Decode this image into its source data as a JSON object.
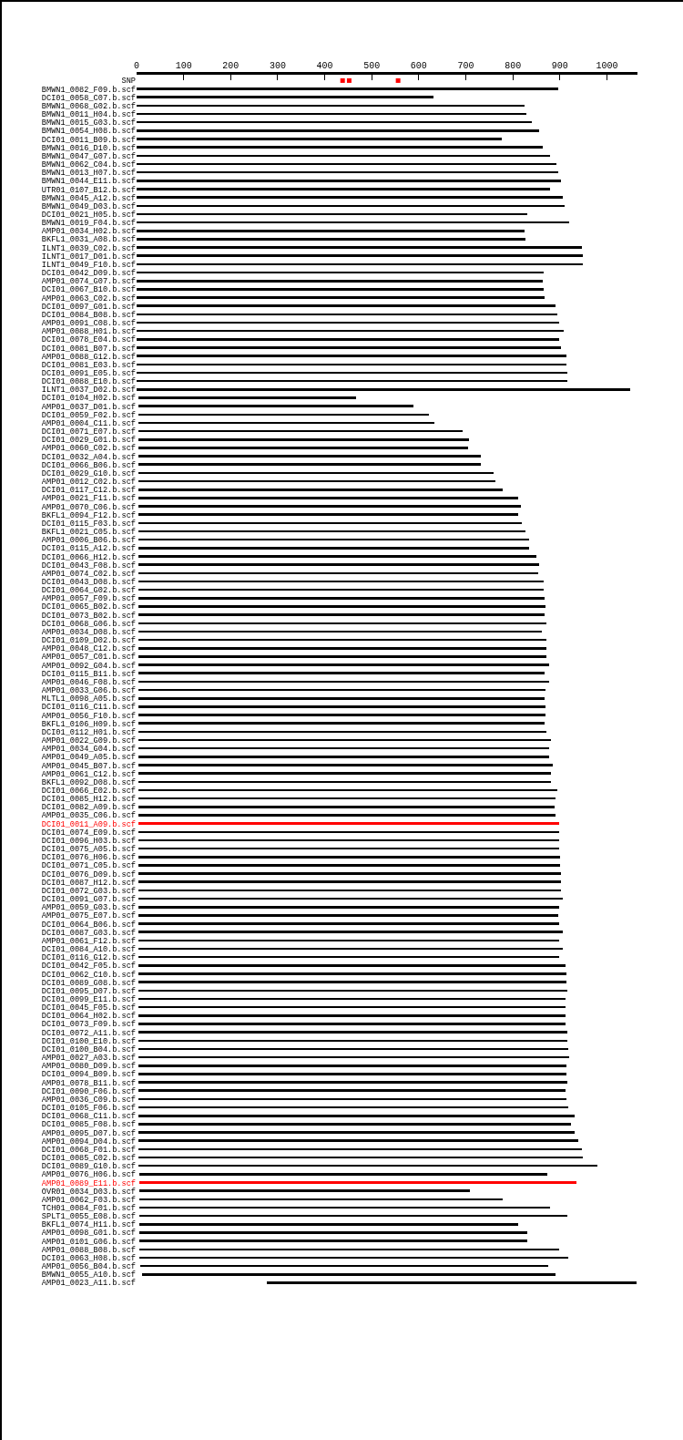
{
  "chart_data": {
    "type": "bar",
    "orientation": "horizontal",
    "xlim": [
      0,
      1065
    ],
    "xticks": [
      0,
      100,
      200,
      300,
      400,
      500,
      600,
      700,
      800,
      900,
      1000
    ],
    "grid": false,
    "categories": [
      "SNP",
      "BMWN1_0082_F09.b.scf",
      "DCI01_0058_C07.b.scf",
      "BMWN1_0068_G02.b.scf",
      "BMWN1_0011_H04.b.scf",
      "BMWN1_0015_G03.b.scf",
      "BMWN1_0054_H08.b.scf",
      "DCI01_0011_B09.b.scf",
      "BMWN1_0016_D10.b.scf",
      "BMWN1_0047_G07.b.scf",
      "BMWN1_0062_C04.b.scf",
      "BMWN1_0013_H07.b.scf",
      "BMWN1_0044_E11.b.scf",
      "UTR01_0107_B12.b.scf",
      "BMWN1_0045_A12.b.scf",
      "BMWN1_0049_D03.b.scf",
      "DCI01_0021_H05.b.scf",
      "BMWN1_0019_F04.b.scf",
      "AMP01_0034_H02.b.scf",
      "BKFL1_0031_A08.b.scf",
      "ILNT1_0039_C02.b.scf",
      "ILNT1_0017_D01.b.scf",
      "ILNT1_0049_F10.b.scf",
      "DCI01_0042_D09.b.scf",
      "AMP01_0074_G07.b.scf",
      "DCI01_0067_B10.b.scf",
      "AMP01_0063_C02.b.scf",
      "DCI01_0097_G01.b.scf",
      "DCI01_0084_B08.b.scf",
      "AMP01_0091_C08.b.scf",
      "AMP01_0088_H01.b.scf",
      "DCI01_0078_E04.b.scf",
      "DCI01_0081_B07.b.scf",
      "AMP01_0088_G12.b.scf",
      "DCI01_0081_E03.b.scf",
      "DCI01_0091_E05.b.scf",
      "DCI01_0088_E10.b.scf",
      "ILNT1_0037_D02.b.scf",
      "DCI01_0104_H02.b.scf",
      "AMP01_0037_D01.b.scf",
      "DCI01_0059_F02.b.scf",
      "AMP01_0004_C11.b.scf",
      "DCI01_0071_E07.b.scf",
      "DCI01_0029_G01.b.scf",
      "AMP01_0060_C02.b.scf",
      "DCI01_0032_A04.b.scf",
      "DCI01_0066_B06.b.scf",
      "DCI01_0029_G10.b.scf",
      "AMP01_0012_C02.b.scf",
      "DCI01_0117_C12.b.scf",
      "AMP01_0021_F11.b.scf",
      "AMP01_0070_C06.b.scf",
      "BKFL1_0094_F12.b.scf",
      "DCI01_0115_F03.b.scf",
      "BKFL1_0021_C05.b.scf",
      "AMP01_0006_B06.b.scf",
      "DCI01_0115_A12.b.scf",
      "DCI01_0066_H12.b.scf",
      "DCI01_0043_F08.b.scf",
      "AMP01_0074_C02.b.scf",
      "DCI01_0043_D08.b.scf",
      "DCI01_0064_G02.b.scf",
      "AMP01_0057_F09.b.scf",
      "DCI01_0065_B02.b.scf",
      "DCI01_0073_B02.b.scf",
      "DCI01_0068_G06.b.scf",
      "AMP01_0034_D08.b.scf",
      "DCI01_0109_D02.b.scf",
      "AMP01_0048_C12.b.scf",
      "AMP01_0057_C01.b.scf",
      "AMP01_0092_G04.b.scf",
      "DCI01_0115_B11.b.scf",
      "AMP01_0046_F08.b.scf",
      "AMP01_0033_G06.b.scf",
      "MLTL1_0098_A05.b.scf",
      "DCI01_0116_C11.b.scf",
      "AMP01_0056_F10.b.scf",
      "BKFL1_0106_H09.b.scf",
      "DCI01_0112_H01.b.scf",
      "AMP01_0022_G09.b.scf",
      "AMP01_0034_G04.b.scf",
      "AMP01_0049_A05.b.scf",
      "AMP01_0045_B07.b.scf",
      "AMP01_0061_C12.b.scf",
      "BKFL1_0092_D08.b.scf",
      "DCI01_0066_E02.b.scf",
      "DCI01_0085_H12.b.scf",
      "DCI01_0082_A09.b.scf",
      "AMP01_0035_C06.b.scf",
      "DCI01_0011_A09.b.scf",
      "DCI01_0074_E09.b.scf",
      "DCI01_0096_H03.b.scf",
      "DCI01_0075_A05.b.scf",
      "DCI01_0076_H06.b.scf",
      "DCI01_0071_C05.b.scf",
      "DCI01_0076_D09.b.scf",
      "DCI01_0087_H12.b.scf",
      "DCI01_0072_G03.b.scf",
      "DCI01_0091_G07.b.scf",
      "AMP01_0059_G03.b.scf",
      "AMP01_0075_E07.b.scf",
      "DCI01_0064_B06.b.scf",
      "DCI01_0087_G03.b.scf",
      "AMP01_0061_F12.b.scf",
      "DCI01_0084_A10.b.scf",
      "DCI01_0116_G12.b.scf",
      "DCI01_0042_F05.b.scf",
      "DCI01_0062_C10.b.scf",
      "DCI01_0089_G08.b.scf",
      "DCI01_0095_D07.b.scf",
      "DCI01_0099_E11.b.scf",
      "DCI01_0045_F05.b.scf",
      "DCI01_0064_H02.b.scf",
      "DCI01_0073_F09.b.scf",
      "DCI01_0072_A11.b.scf",
      "DCI01_0100_E10.b.scf",
      "DCI01_0100_B04.b.scf",
      "AMP01_0027_A03.b.scf",
      "AMP01_0080_D09.b.scf",
      "DCI01_0094_B09.b.scf",
      "AMP01_0078_B11.b.scf",
      "DCI01_0090_F06.b.scf",
      "AMP01_0036_C09.b.scf",
      "DCI01_0105_F06.b.scf",
      "DCI01_0068_C11.b.scf",
      "DCI01_0085_F08.b.scf",
      "AMP01_0095_D07.b.scf",
      "AMP01_0094_D04.b.scf",
      "DCI01_0068_F01.b.scf",
      "DCI01_0085_C02.b.scf",
      "DCI01_0089_G10.b.scf",
      "AMP01_0076_H06.b.scf",
      "AMP01_0089_E11.b.scf",
      "OVR01_0034_D03.b.scf",
      "AMP01_0062_F03.b.scf",
      "TCH01_0084_F01.b.scf",
      "SPLT1_0055_E08.b.scf",
      "BKFL1_0074_H11.b.scf",
      "AMP01_0098_G01.b.scf",
      "AMP01_0101_G06.b.scf",
      "AMP01_0088_B08.b.scf",
      "DCI01_0063_H08.b.scf",
      "AMP01_0056_B04.b.scf",
      "BMWN1_0055_A10.b.scf",
      "AMP01_0023_A11.b.scf"
    ],
    "series": [
      {
        "values": [
          null,
          896,
          631,
          825,
          829,
          840,
          855,
          776,
          863,
          880,
          892,
          896,
          903,
          880,
          907,
          911,
          830,
          919,
          825,
          827,
          947,
          949,
          949,
          866,
          863,
          866,
          868,
          891,
          895,
          899,
          909,
          899,
          903,
          914,
          914,
          916,
          916,
          1049,
          463,
          586,
          619,
          630,
          690,
          703,
          701,
          728,
          728,
          756,
          759,
          775,
          809,
          815,
          808,
          817,
          823,
          832,
          831,
          848,
          853,
          850,
          862,
          863,
          865,
          867,
          865,
          869,
          859,
          869,
          869,
          869,
          874,
          865,
          874,
          867,
          865,
          867,
          867,
          865,
          869,
          878,
          874,
          874,
          882,
          878,
          878,
          892,
          887,
          885,
          888,
          896,
          896,
          896,
          896,
          897,
          897,
          899,
          899,
          899,
          903,
          896,
          894,
          896,
          903,
          896,
          903,
          896,
          909,
          911,
          911,
          913,
          909,
          909,
          909,
          909,
          913,
          913,
          915,
          917,
          911,
          911,
          913,
          909,
          911,
          915,
          929,
          921,
          929,
          936,
          944,
          946,
          977,
          868,
          930,
          703,
          773,
          874,
          911,
          806,
          825,
          825,
          893,
          912,
          868,
          879,
          787
        ],
        "base": [
          null,
          0,
          0,
          0,
          0,
          0,
          0,
          0,
          0,
          0,
          0,
          0,
          0,
          0,
          0,
          0,
          0,
          0,
          0,
          0,
          0,
          0,
          0,
          0,
          0,
          0,
          0,
          0,
          0,
          0,
          0,
          0,
          0,
          0,
          0,
          0,
          0,
          0,
          3,
          3,
          3,
          3,
          3,
          3,
          3,
          3,
          3,
          3,
          3,
          3,
          3,
          3,
          3,
          3,
          3,
          3,
          3,
          3,
          3,
          3,
          3,
          3,
          3,
          3,
          3,
          3,
          3,
          3,
          3,
          3,
          3,
          3,
          3,
          3,
          3,
          3,
          3,
          3,
          3,
          3,
          3,
          3,
          3,
          3,
          3,
          3,
          3,
          3,
          3,
          3,
          3,
          3,
          3,
          3,
          3,
          3,
          3,
          3,
          3,
          3,
          3,
          3,
          3,
          3,
          3,
          3,
          3,
          3,
          3,
          3,
          3,
          3,
          3,
          3,
          3,
          3,
          3,
          3,
          3,
          3,
          3,
          3,
          3,
          3,
          3,
          3,
          3,
          3,
          3,
          3,
          3,
          5,
          5,
          5,
          5,
          5,
          5,
          6,
          6,
          6,
          6,
          6,
          8,
          12,
          276
        ],
        "colors": [
          "#000000",
          "#000000",
          "#000000",
          "#000000",
          "#000000",
          "#000000",
          "#000000",
          "#000000",
          "#000000",
          "#000000",
          "#000000",
          "#000000",
          "#000000",
          "#000000",
          "#000000",
          "#000000",
          "#000000",
          "#000000",
          "#000000",
          "#000000",
          "#000000",
          "#000000",
          "#000000",
          "#000000",
          "#000000",
          "#000000",
          "#000000",
          "#000000",
          "#000000",
          "#000000",
          "#000000",
          "#000000",
          "#000000",
          "#000000",
          "#000000",
          "#000000",
          "#000000",
          "#000000",
          "#000000",
          "#000000",
          "#000000",
          "#000000",
          "#000000",
          "#000000",
          "#000000",
          "#000000",
          "#000000",
          "#000000",
          "#000000",
          "#000000",
          "#000000",
          "#000000",
          "#000000",
          "#000000",
          "#000000",
          "#000000",
          "#000000",
          "#000000",
          "#000000",
          "#000000",
          "#000000",
          "#000000",
          "#000000",
          "#000000",
          "#000000",
          "#000000",
          "#000000",
          "#000000",
          "#000000",
          "#000000",
          "#000000",
          "#000000",
          "#000000",
          "#000000",
          "#000000",
          "#000000",
          "#000000",
          "#000000",
          "#000000",
          "#000000",
          "#000000",
          "#000000",
          "#000000",
          "#000000",
          "#000000",
          "#000000",
          "#000000",
          "#000000",
          "#000000",
          "#ff0000",
          "#000000",
          "#000000",
          "#000000",
          "#000000",
          "#000000",
          "#000000",
          "#000000",
          "#000000",
          "#000000",
          "#000000",
          "#000000",
          "#000000",
          "#000000",
          "#000000",
          "#000000",
          "#000000",
          "#000000",
          "#000000",
          "#000000",
          "#000000",
          "#000000",
          "#000000",
          "#000000",
          "#000000",
          "#000000",
          "#000000",
          "#000000",
          "#000000",
          "#000000",
          "#000000",
          "#000000",
          "#000000",
          "#000000",
          "#000000",
          "#000000",
          "#000000",
          "#000000",
          "#000000",
          "#000000",
          "#000000",
          "#000000",
          "#000000",
          "#ff0000",
          "#000000",
          "#000000",
          "#000000",
          "#000000",
          "#000000",
          "#000000",
          "#000000",
          "#000000",
          "#000000",
          "#000000",
          "#000000",
          "#000000"
        ]
      },
      {
        "type": "scatter",
        "x": [
          "SNP",
          "SNP",
          "SNP"
        ],
        "values": [
          438,
          452,
          556
        ],
        "color": "#ff0000",
        "marker": "square"
      }
    ]
  }
}
